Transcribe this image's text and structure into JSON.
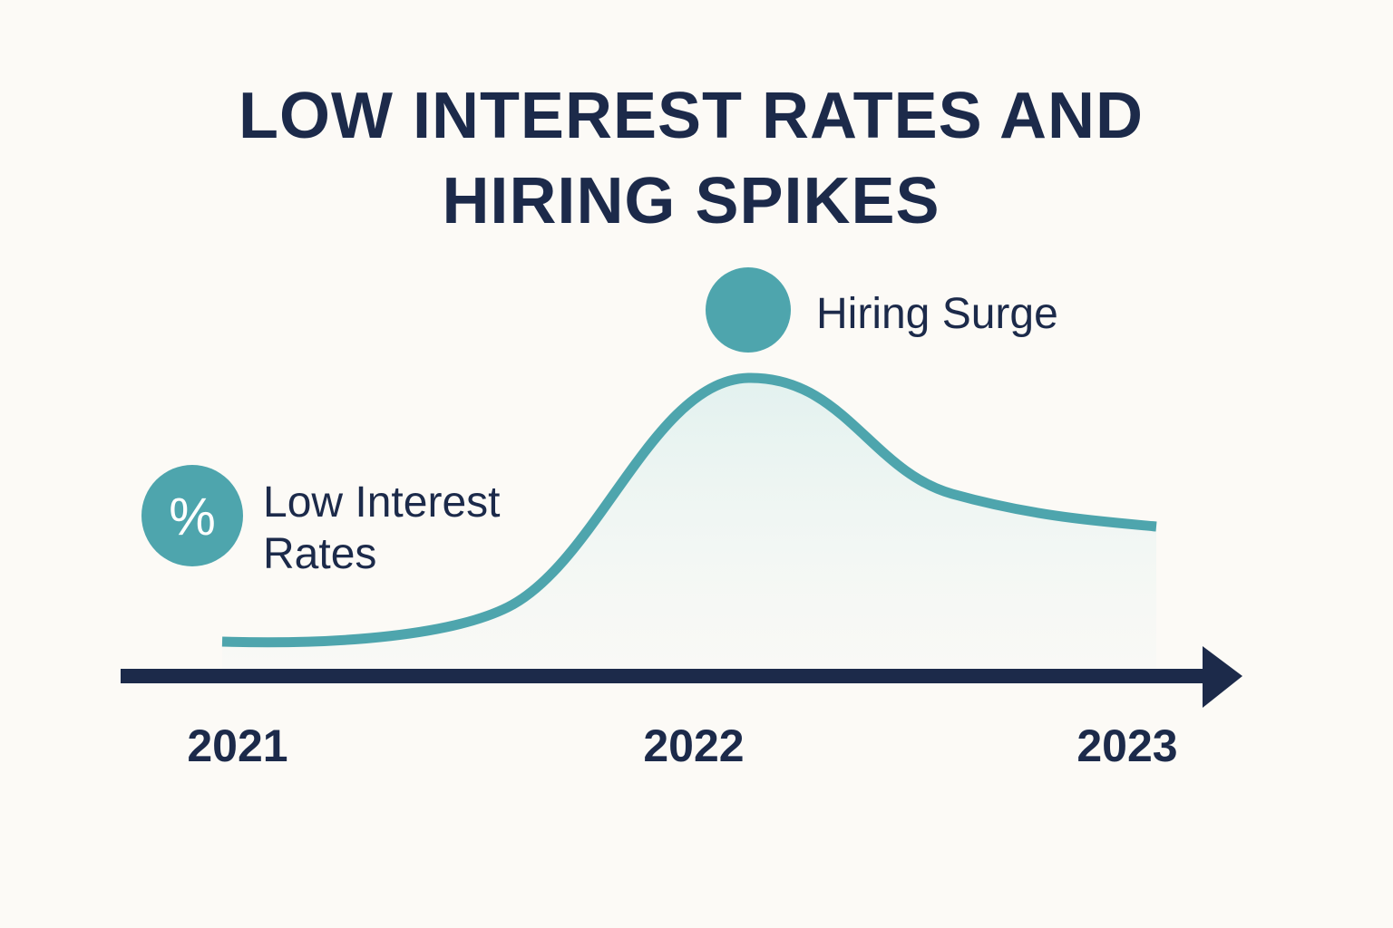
{
  "header": {
    "title_lines": [
      "LOW INTEREST RATES AND",
      "HIRING SPIKES"
    ]
  },
  "annotations": {
    "peak_label": "Hiring Surge",
    "rates_icon": "%",
    "rates_label_lines": [
      "Low Interest",
      "Rates"
    ]
  },
  "timeline": {
    "labels": [
      "2021",
      "2022",
      "2023"
    ]
  }
}
